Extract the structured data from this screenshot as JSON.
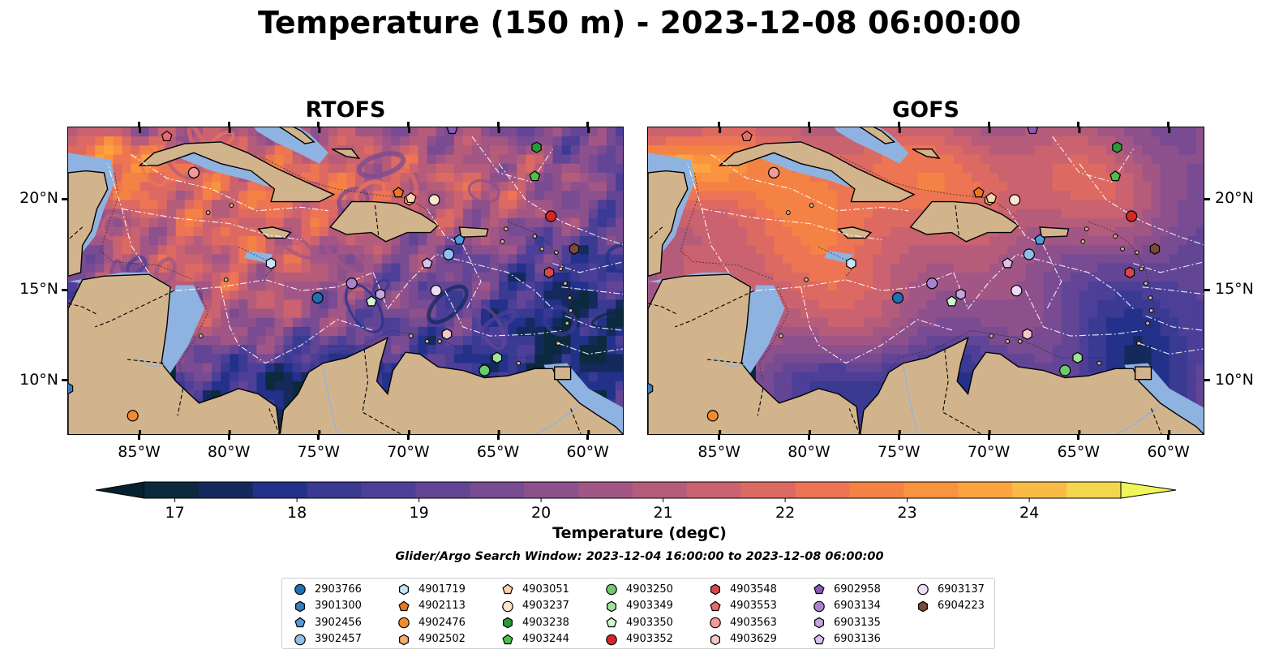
{
  "title": "Temperature (150 m) - 2023-12-08 06:00:00",
  "panels": [
    {
      "title": "RTOFS",
      "variant": "rtofs"
    },
    {
      "title": "GOFS",
      "variant": "gofs"
    }
  ],
  "map": {
    "extent": {
      "lon_min": -89,
      "lon_max": -58,
      "lat_min": 7,
      "lat_max": 24
    },
    "lon_ticks": [
      "85°W",
      "80°W",
      "75°W",
      "70°W",
      "65°W",
      "60°W"
    ],
    "lon_tick_values": [
      -85,
      -80,
      -75,
      -70,
      -65,
      -60
    ],
    "lat_ticks": [
      "20°N",
      "15°N",
      "10°N"
    ],
    "lat_tick_values": [
      20,
      15,
      10
    ],
    "land_color": "#d2b48c",
    "shelf_color": "#8fb3e0"
  },
  "colorbar": {
    "label": "Temperature (degC)",
    "ticks": [
      "17",
      "18",
      "19",
      "20",
      "21",
      "22",
      "23",
      "24"
    ],
    "tick_values": [
      17,
      18,
      19,
      20,
      21,
      22,
      23,
      24
    ],
    "range": [
      16.75,
      24.75
    ],
    "colors": [
      "#0b2a3d",
      "#142a5c",
      "#23318a",
      "#3a3a93",
      "#4d3f98",
      "#634596",
      "#784b92",
      "#8c508d",
      "#a25686",
      "#b65c7b",
      "#ca6270",
      "#dd6a62",
      "#ed7553",
      "#f58245",
      "#fa9340",
      "#fca540",
      "#f9bb46",
      "#f4d64c"
    ],
    "under_color": "#06202e",
    "over_color": "#f0f55a"
  },
  "search_window": "Glider/Argo Search Window: 2023-12-04 16:00:00 to 2023-12-08 06:00:00",
  "floats": [
    {
      "id": "2903766",
      "marker": "circle",
      "color": "#1f6fb4",
      "lon": -75.1,
      "lat": 14.6
    },
    {
      "id": "3901300",
      "marker": "hexagon",
      "color": "#3a7ec0",
      "lon": -89.0,
      "lat": 9.6
    },
    {
      "id": "3902456",
      "marker": "pentagon",
      "color": "#4d9de0",
      "lon": -67.2,
      "lat": 17.8
    },
    {
      "id": "3902457",
      "marker": "circle",
      "color": "#8ec0ea",
      "lon": -67.8,
      "lat": 17.0
    },
    {
      "id": "4901719",
      "marker": "hexagon",
      "color": "#c6e3f7",
      "lon": -77.7,
      "lat": 16.5
    },
    {
      "id": "4902113",
      "marker": "pentagon",
      "color": "#f0761a",
      "lon": -70.6,
      "lat": 20.4
    },
    {
      "id": "4902476",
      "marker": "circle",
      "color": "#f28a2e",
      "lon": -85.4,
      "lat": 8.1
    },
    {
      "id": "4902502",
      "marker": "hexagon",
      "color": "#fbae6b",
      "lon": -70.0,
      "lat": 20.0
    },
    {
      "id": "4903051",
      "marker": "pentagon",
      "color": "#fcd3a8",
      "lon": -69.9,
      "lat": 20.1
    },
    {
      "id": "4903237",
      "marker": "circle",
      "color": "#fde4cc",
      "lon": -68.6,
      "lat": 20.0
    },
    {
      "id": "4903238",
      "marker": "hexagon",
      "color": "#2a9a35",
      "lon": -62.9,
      "lat": 22.9
    },
    {
      "id": "4903244",
      "marker": "pentagon",
      "color": "#4cbf4c",
      "lon": -63.0,
      "lat": 21.3
    },
    {
      "id": "4903250",
      "marker": "circle",
      "color": "#6cc96c",
      "lon": -65.8,
      "lat": 10.6
    },
    {
      "id": "4903349",
      "marker": "hexagon",
      "color": "#9fe29a",
      "lon": -65.1,
      "lat": 11.3
    },
    {
      "id": "4903350",
      "marker": "pentagon",
      "color": "#d2f5cf",
      "lon": -72.1,
      "lat": 14.4
    },
    {
      "id": "4903352",
      "marker": "circle",
      "color": "#d62728",
      "lon": -62.1,
      "lat": 19.1
    },
    {
      "id": "4903548",
      "marker": "hexagon",
      "color": "#d94848",
      "lon": -62.2,
      "lat": 16.0
    },
    {
      "id": "4903553",
      "marker": "pentagon",
      "color": "#e86a6a",
      "lon": -83.5,
      "lat": 23.5
    },
    {
      "id": "4903563",
      "marker": "circle",
      "color": "#f29a9a",
      "lon": -82.0,
      "lat": 21.5
    },
    {
      "id": "4903629",
      "marker": "hexagon",
      "color": "#f8c8c8",
      "lon": -67.9,
      "lat": 12.6
    },
    {
      "id": "6902958",
      "marker": "pentagon",
      "color": "#8a5ab8",
      "lon": -67.6,
      "lat": 23.9
    },
    {
      "id": "6903134",
      "marker": "circle",
      "color": "#a882cf",
      "lon": -73.2,
      "lat": 15.4
    },
    {
      "id": "6903135",
      "marker": "hexagon",
      "color": "#c3a5e0",
      "lon": -71.6,
      "lat": 14.8
    },
    {
      "id": "6903136",
      "marker": "pentagon",
      "color": "#d9c2ee",
      "lon": -69.0,
      "lat": 16.5
    },
    {
      "id": "6903137",
      "marker": "circle",
      "color": "#ecdcf8",
      "lon": -68.5,
      "lat": 15.0
    },
    {
      "id": "6904223",
      "marker": "hexagon",
      "color": "#7a4a3a",
      "lon": -60.8,
      "lat": 17.3
    }
  ]
}
